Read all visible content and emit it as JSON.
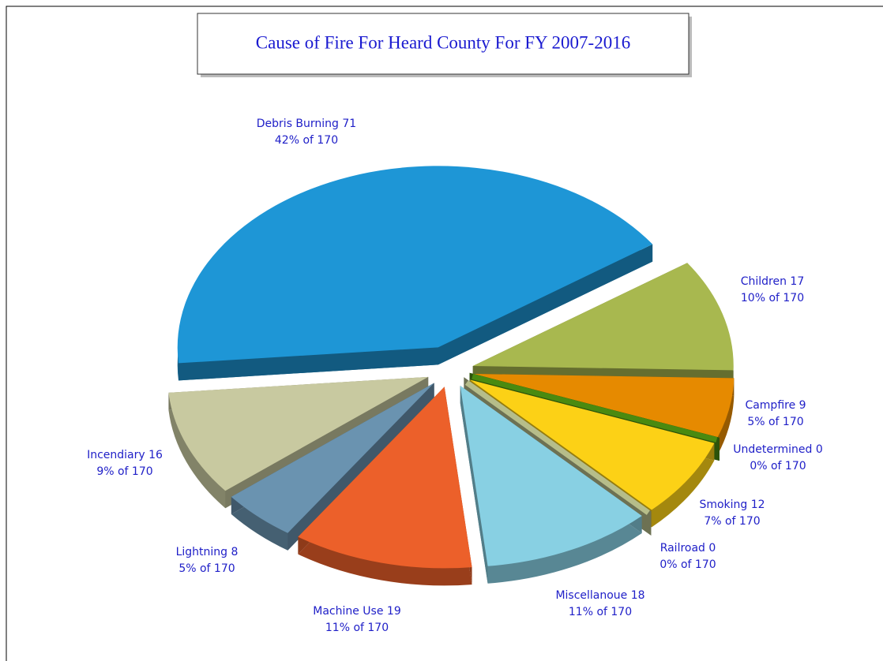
{
  "chart_data": {
    "type": "pie3d",
    "title": "Cause of Fire For Heard County For FY 2007-2016",
    "values": [
      71,
      17,
      9,
      0,
      12,
      0,
      18,
      19,
      8,
      16
    ],
    "value_labels": [
      "Debris Burning 71",
      "Children 17",
      "Campfire 9",
      "Undetermined 0",
      "Smoking 12",
      "Railroad 0",
      "Miscellanoue 18",
      "Machine Use 19",
      "Lightning 8",
      "Incendiary 16"
    ],
    "percents": [
      42,
      10,
      5,
      0,
      7,
      0,
      11,
      11,
      5,
      9
    ],
    "percent_labels": [
      "42% of 170",
      "10% of 170",
      "5% of 170",
      "0% of 170",
      "7% of 170",
      "0% of 170",
      "11% of 170",
      "11% of 170",
      "5% of 170",
      "9% of 170"
    ],
    "colors": [
      "#1e96d6",
      "#a8b84f",
      "#e68a00",
      "#4a8a10",
      "#fcd116",
      "#b6bd8a",
      "#88d0e3",
      "#ec602a",
      "#6a93b0",
      "#c8c9a0"
    ]
  }
}
